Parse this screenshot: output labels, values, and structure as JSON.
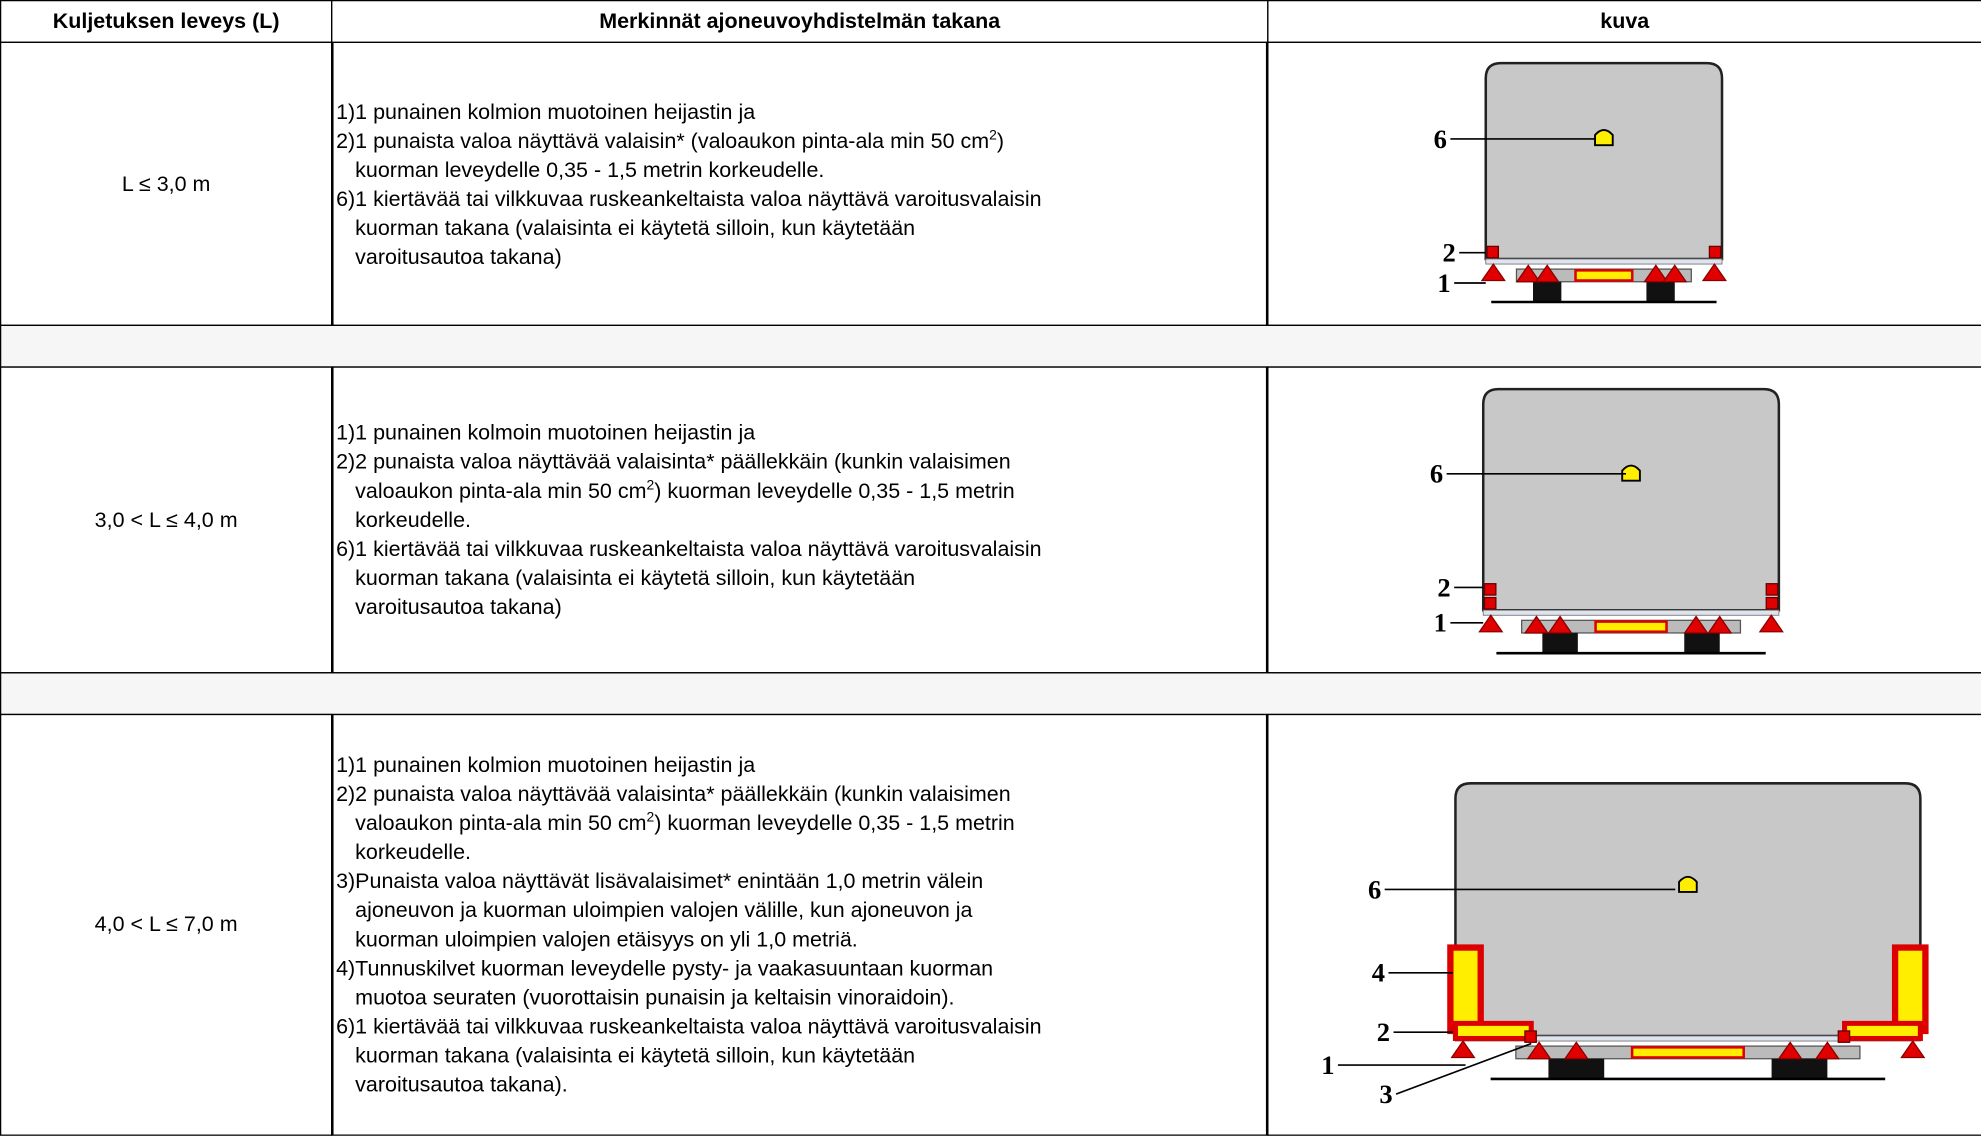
{
  "table": {
    "header": [
      "Kuljetuksen leveys (L)",
      "Merkinnät ajoneuvoyhdistelmän takana",
      "kuva"
    ],
    "rows": [
      {
        "width": "L ≤ 3,0 m",
        "items": [
          {
            "num": "1)",
            "lines": [
              "1 punainen kolmion muotoinen heijastin ja"
            ]
          },
          {
            "num": "2)",
            "lines": [
              [
                "1 punaista valoa näyttävä valaisin* (valoaukon pinta-ala min 50 cm",
                "2",
                ")"
              ],
              "kuorman leveydelle 0,35 - 1,5 metrin korkeudelle."
            ]
          },
          {
            "num": "6)",
            "lines": [
              "1 kiertävää tai vilkkuvaa ruskeankeltaista valoa näyttävä varoitusvalaisin",
              "kuorman takana (valaisinta ei käytetä silloin, kun käytetään",
              "varoitusautoa takana)"
            ]
          }
        ],
        "figure_labels": [
          "6",
          "2",
          "1"
        ]
      },
      {
        "width": "3,0 < L ≤ 4,0 m",
        "items": [
          {
            "num": "1)",
            "lines": [
              "1 punainen kolmoin muotoinen heijastin ja"
            ]
          },
          {
            "num": "2)",
            "lines": [
              "2 punaista valoa näyttävää valaisinta* päällekkäin (kunkin valaisimen",
              [
                "valoaukon pinta-ala min 50 cm",
                "2",
                ") kuorman leveydelle 0,35 - 1,5 metrin"
              ],
              "korkeudelle."
            ]
          },
          {
            "num": "6)",
            "lines": [
              "1 kiertävää tai vilkkuvaa ruskeankeltaista valoa näyttävä varoitusvalaisin",
              "kuorman takana (valaisinta ei käytetä silloin, kun käytetään",
              "varoitusautoa takana)"
            ]
          }
        ],
        "figure_labels": [
          "6",
          "2",
          "1"
        ]
      },
      {
        "width": "4,0 < L ≤ 7,0 m",
        "items": [
          {
            "num": "1)",
            "lines": [
              "1 punainen kolmion muotoinen heijastin ja"
            ]
          },
          {
            "num": "2)",
            "lines": [
              "2 punaista valoa näyttävää valaisinta* päällekkäin (kunkin valaisimen",
              [
                "valoaukon pinta-ala min 50 cm",
                "2",
                ") kuorman leveydelle 0,35 - 1,5 metrin"
              ],
              "korkeudelle."
            ]
          },
          {
            "num": "3)",
            "lines": [
              "Punaista valoa näyttävät lisävalaisimet* enintään 1,0 metrin välein",
              "ajoneuvon ja kuorman uloimpien valojen välille, kun ajoneuvon ja",
              "kuorman uloimpien valojen etäisyys on yli 1,0 metriä."
            ]
          },
          {
            "num": "4)",
            "lines": [
              "Tunnuskilvet kuorman leveydelle pysty- ja vaakasuuntaan kuorman",
              "muotoa seuraten (vuorottaisin punaisin ja keltaisin vinoraidoin)."
            ]
          },
          {
            "num": "6)",
            "lines": [
              "1 kiertävää tai vilkkuvaa ruskeankeltaista valoa näyttävä varoitusvalaisin",
              "kuorman takana (valaisinta ei käytetä silloin, kun käytetään",
              "varoitusautoa takana)."
            ]
          }
        ],
        "figure_labels": [
          "6",
          "4",
          "2",
          "1",
          "3"
        ]
      }
    ]
  }
}
